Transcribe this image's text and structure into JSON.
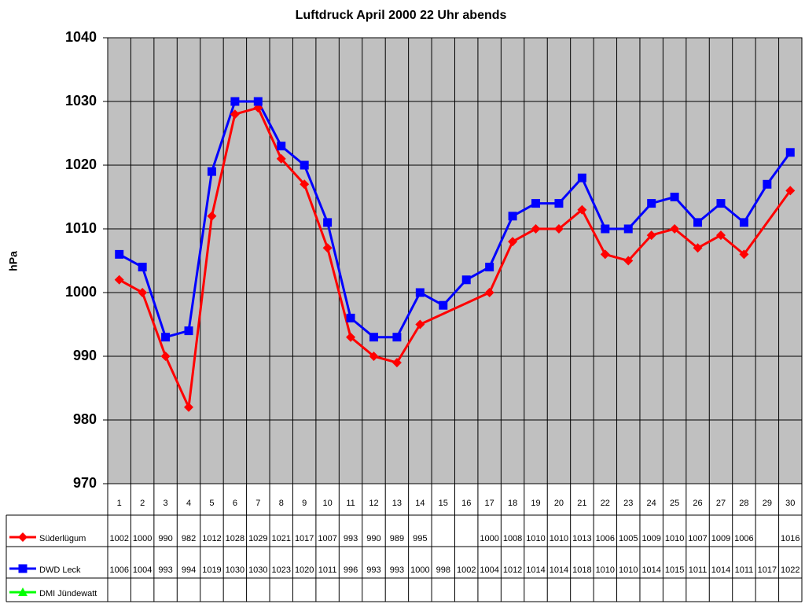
{
  "chart_data": {
    "type": "line",
    "title": "Luftdruck April 2000 22 Uhr abends",
    "y_label": "hPa",
    "categories": [
      1,
      2,
      3,
      4,
      5,
      6,
      7,
      8,
      9,
      10,
      11,
      12,
      13,
      14,
      15,
      16,
      17,
      18,
      19,
      20,
      21,
      22,
      23,
      24,
      25,
      26,
      27,
      28,
      29,
      30
    ],
    "series": [
      {
        "name": "Süderlügum",
        "color": "#ff0000",
        "marker": "diamond",
        "values": [
          1002,
          1000,
          990,
          982,
          1012,
          1028,
          1029,
          1021,
          1017,
          1007,
          993,
          990,
          989,
          995,
          null,
          null,
          1000,
          1008,
          1010,
          1010,
          1013,
          1006,
          1005,
          1009,
          1010,
          1007,
          1009,
          1006,
          null,
          1016
        ]
      },
      {
        "name": "DWD Leck",
        "color": "#0000ff",
        "marker": "square",
        "values": [
          1006,
          1004,
          993,
          994,
          1019,
          1030,
          1030,
          1023,
          1020,
          1011,
          996,
          993,
          993,
          1000,
          998,
          1002,
          1004,
          1012,
          1014,
          1014,
          1018,
          1010,
          1010,
          1014,
          1015,
          1011,
          1014,
          1011,
          1017,
          1022
        ]
      },
      {
        "name": "DMI Jündewatt",
        "color": "#00ff00",
        "marker": "triangle",
        "values": [
          null,
          null,
          null,
          null,
          null,
          null,
          null,
          null,
          null,
          null,
          null,
          null,
          null,
          null,
          null,
          null,
          null,
          null,
          null,
          null,
          null,
          null,
          null,
          null,
          null,
          null,
          null,
          null,
          null,
          null
        ]
      }
    ],
    "ylim": [
      970,
      1040
    ],
    "yticks": [
      970,
      980,
      990,
      1000,
      1010,
      1020,
      1030,
      1040
    ],
    "grid": true,
    "plot_background": "#c0c0c0"
  }
}
